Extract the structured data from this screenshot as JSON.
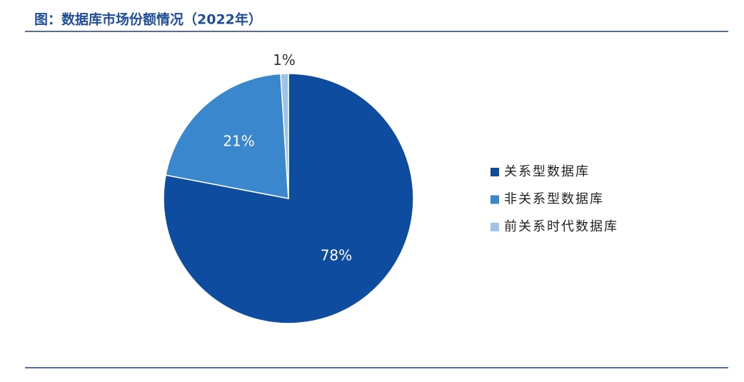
{
  "chart_data": {
    "type": "pie",
    "title": "图：数据库市场份额情况（2022年）",
    "categories": [
      "关系型数据库",
      "非关系型数据库",
      "前关系时代数据库"
    ],
    "values": [
      78,
      21,
      1
    ],
    "value_labels": [
      "78%",
      "21%",
      "1%"
    ],
    "colors": [
      "#0d4c9e",
      "#3a87cd",
      "#9dc3e6"
    ],
    "legend": "right"
  }
}
